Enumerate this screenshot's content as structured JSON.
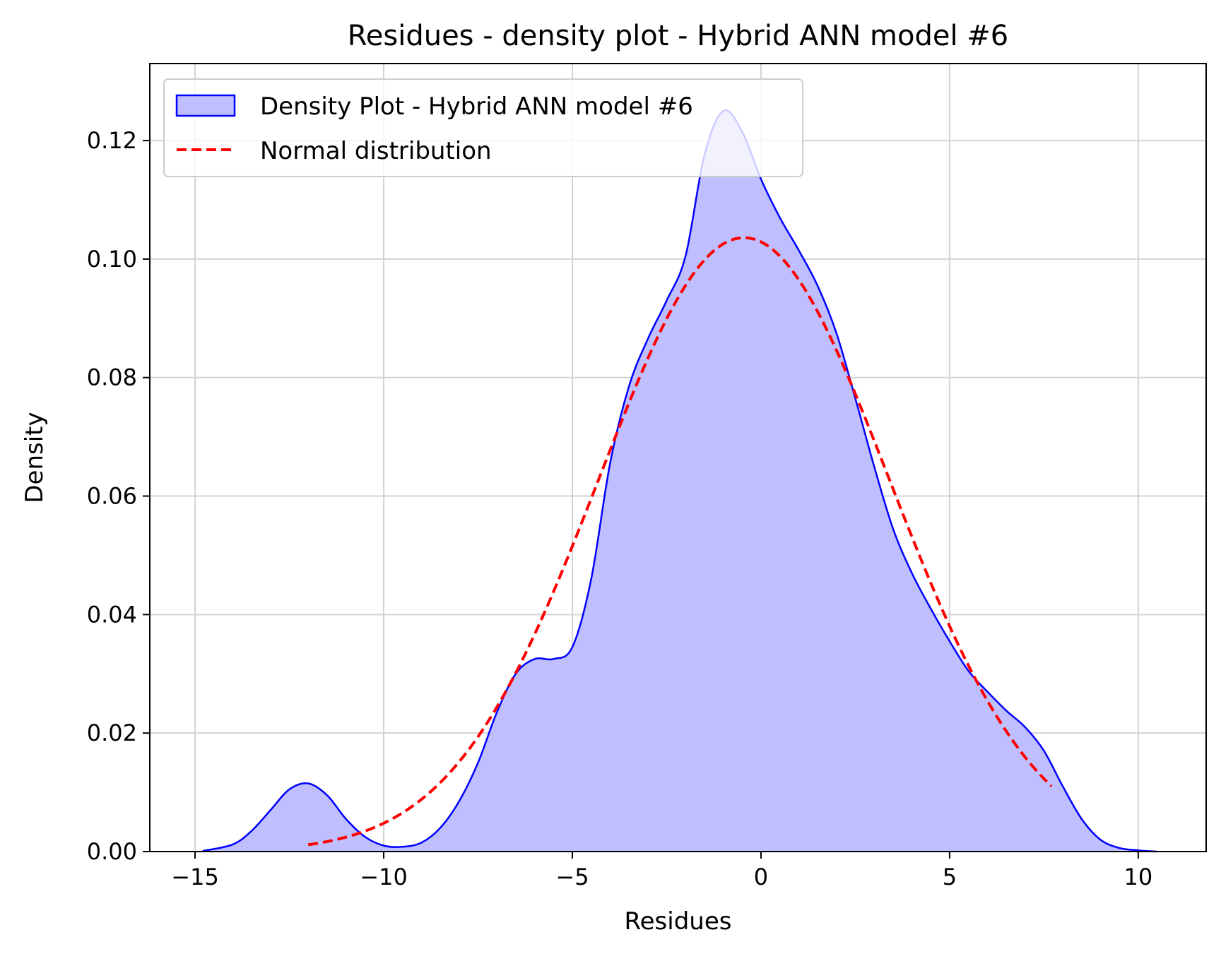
{
  "chart_data": {
    "type": "area",
    "title": "Residues - density plot - Hybrid ANN model #6",
    "xlabel": "Residues",
    "ylabel": "Density",
    "xlim": [
      -16.2,
      11.8
    ],
    "ylim": [
      0,
      0.133
    ],
    "xticks": [
      -15,
      -10,
      -5,
      0,
      5,
      10
    ],
    "xtick_labels": [
      "−15",
      "−10",
      "−5",
      "0",
      "5",
      "10"
    ],
    "yticks": [
      0.0,
      0.02,
      0.04,
      0.06,
      0.08,
      0.1,
      0.12
    ],
    "ytick_labels": [
      "0.00",
      "0.02",
      "0.04",
      "0.06",
      "0.08",
      "0.10",
      "0.12"
    ],
    "grid": true,
    "legend": {
      "placement": "upper-left",
      "entries": [
        "Density Plot - Hybrid ANN model #6",
        "Normal distribution"
      ]
    },
    "series": [
      {
        "name": "Density Plot - Hybrid ANN model #6",
        "style": "filled-area",
        "color": "#0000ff",
        "fill": "#bfbfff",
        "x": [
          -14.8,
          -14.0,
          -13.5,
          -13.0,
          -12.5,
          -12.0,
          -11.5,
          -11.0,
          -10.5,
          -10.0,
          -9.5,
          -9.0,
          -8.5,
          -8.0,
          -7.5,
          -7.0,
          -6.5,
          -6.0,
          -5.5,
          -5.0,
          -4.5,
          -4.0,
          -3.5,
          -3.0,
          -2.5,
          -2.0,
          -1.5,
          -1.0,
          -0.5,
          0.0,
          0.5,
          1.0,
          1.5,
          2.0,
          2.5,
          3.0,
          3.5,
          4.0,
          4.5,
          5.0,
          5.5,
          6.0,
          6.5,
          7.0,
          7.5,
          8.0,
          8.5,
          9.0,
          9.5,
          10.0,
          10.5
        ],
        "y": [
          0.0001,
          0.0012,
          0.0035,
          0.007,
          0.0105,
          0.0115,
          0.0095,
          0.0055,
          0.0025,
          0.001,
          0.0008,
          0.0015,
          0.004,
          0.0085,
          0.015,
          0.0235,
          0.03,
          0.0325,
          0.0325,
          0.0345,
          0.046,
          0.0655,
          0.0785,
          0.0865,
          0.093,
          0.1005,
          0.1175,
          0.125,
          0.1215,
          0.1135,
          0.107,
          0.1015,
          0.0955,
          0.0875,
          0.0765,
          0.065,
          0.0545,
          0.047,
          0.041,
          0.0355,
          0.0305,
          0.027,
          0.0238,
          0.021,
          0.017,
          0.011,
          0.0055,
          0.002,
          0.0006,
          0.0002,
          0.0
        ]
      },
      {
        "name": "Normal distribution",
        "style": "dashed-line",
        "color": "#ff0000",
        "mean": -0.45,
        "std": 3.85,
        "x_range": [
          -12.0,
          7.7
        ]
      }
    ]
  }
}
